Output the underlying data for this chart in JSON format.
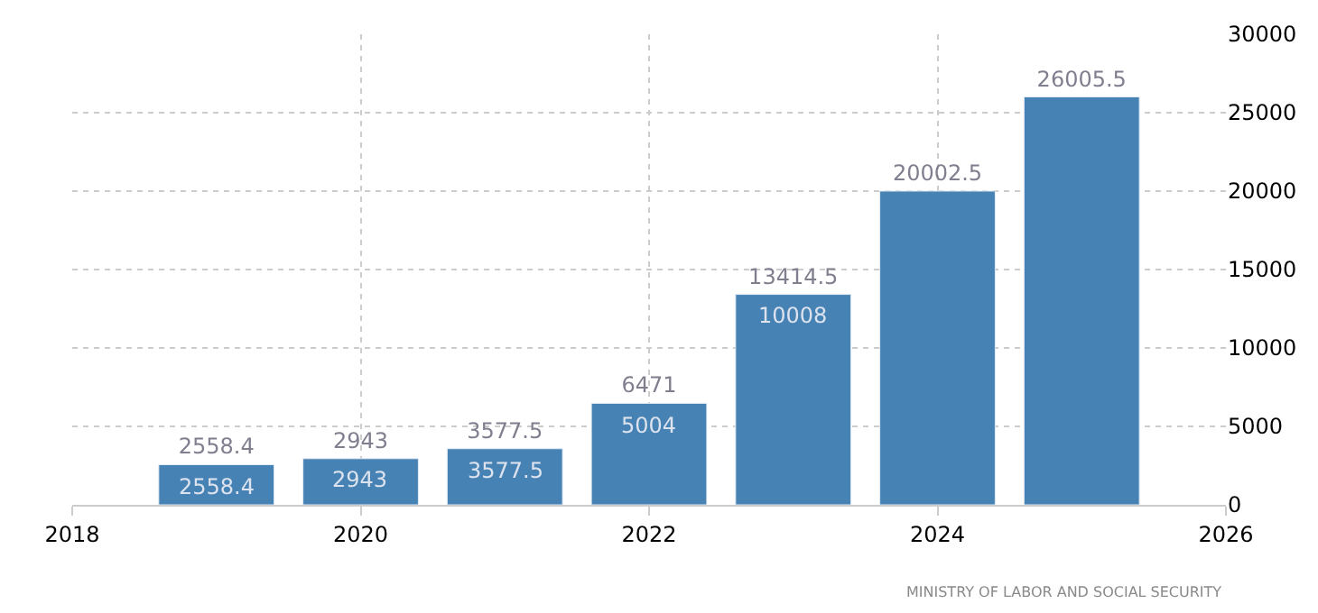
{
  "chart_data": {
    "type": "bar",
    "x": [
      2019,
      2020,
      2021,
      2022,
      2023,
      2024,
      2025
    ],
    "values": [
      2558.4,
      2943,
      3577.5,
      6471,
      13414.5,
      20002.5,
      26005.5
    ],
    "color": "#4682b4",
    "data_labels": true,
    "xlim": [
      2018,
      2026
    ],
    "xticks": [
      2018,
      2020,
      2022,
      2024,
      2026
    ],
    "ylim": [
      0,
      30000
    ],
    "yticks": [
      0,
      5000,
      10000,
      15000,
      20000,
      25000,
      30000
    ],
    "grid": true,
    "line_style": "dotted",
    "annotations": [
      "2558.4",
      "2943",
      "3577.5",
      "5004",
      "10008",
      "MINISTRY OF LABOR AND SOCIAL SECURITY"
    ]
  }
}
